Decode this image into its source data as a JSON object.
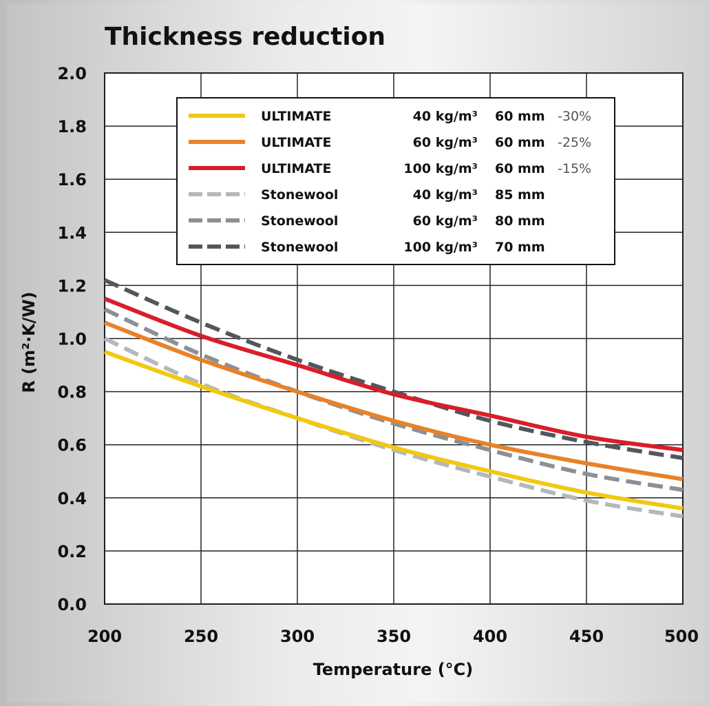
{
  "chart_data": {
    "type": "line",
    "title": "Thickness reduction",
    "xlabel": "Temperature (°C)",
    "ylabel": "R (m²·K/W)",
    "xlim": [
      200,
      500
    ],
    "ylim": [
      0.0,
      2.0
    ],
    "xticks": [
      "200",
      "250",
      "300",
      "350",
      "400",
      "450",
      "500"
    ],
    "yticks": [
      "0.0",
      "0.2",
      "0.4",
      "0.6",
      "0.8",
      "1.0",
      "1.2",
      "1.4",
      "1.6",
      "1.8",
      "2.0"
    ],
    "grid": true,
    "legend_position": "top-center",
    "x": [
      200,
      250,
      300,
      350,
      400,
      450,
      500
    ],
    "series": [
      {
        "name": "ULTIMATE",
        "density": "40 kg/m³",
        "thickness": "60 mm",
        "reduction": "-30%",
        "style": "solid",
        "color": "#f2c811",
        "values": [
          0.95,
          0.82,
          0.7,
          0.59,
          0.5,
          0.42,
          0.36
        ]
      },
      {
        "name": "ULTIMATE",
        "density": "60 kg/m³",
        "thickness": "60 mm",
        "reduction": "-25%",
        "style": "solid",
        "color": "#e8822a",
        "values": [
          1.06,
          0.92,
          0.8,
          0.69,
          0.6,
          0.53,
          0.47
        ]
      },
      {
        "name": "ULTIMATE",
        "density": "100 kg/m³",
        "thickness": "60 mm",
        "reduction": "-15%",
        "style": "solid",
        "color": "#d81e2a",
        "values": [
          1.15,
          1.01,
          0.9,
          0.79,
          0.71,
          0.63,
          0.58
        ]
      },
      {
        "name": "Stonewool",
        "density": "40 kg/m³",
        "thickness": "85 mm",
        "reduction": "",
        "style": "dashed",
        "color": "#b4b8bd",
        "values": [
          1.0,
          0.83,
          0.7,
          0.58,
          0.48,
          0.39,
          0.33
        ]
      },
      {
        "name": "Stonewool",
        "density": "60 kg/m³",
        "thickness": "80 mm",
        "reduction": "",
        "style": "dashed",
        "color": "#8b9097",
        "values": [
          1.11,
          0.94,
          0.8,
          0.68,
          0.58,
          0.49,
          0.43
        ]
      },
      {
        "name": "Stonewool",
        "density": "100 kg/m³",
        "thickness": "70 mm",
        "reduction": "",
        "style": "dashed",
        "color": "#52575d",
        "values": [
          1.22,
          1.06,
          0.92,
          0.8,
          0.69,
          0.61,
          0.55
        ]
      }
    ]
  }
}
